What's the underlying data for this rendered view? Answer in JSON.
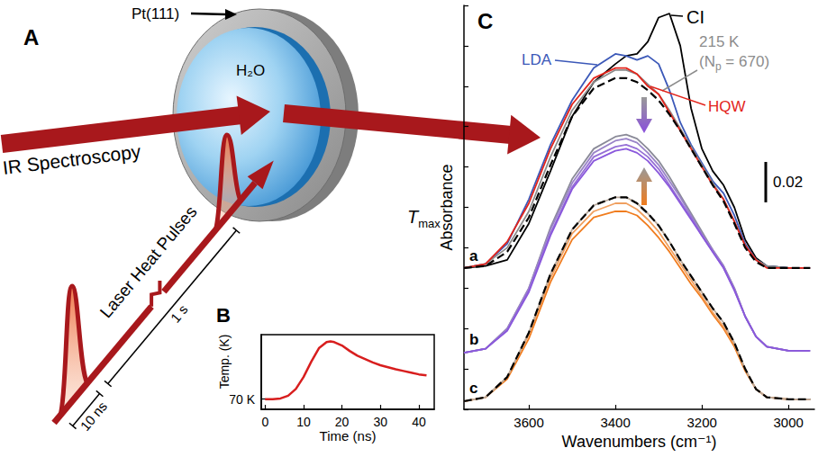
{
  "diagram": {
    "panel": "A",
    "surface": "Pt(111)",
    "film": "H₂O",
    "probe": "IR Spectroscopy",
    "pump": "Laser Heat Pulses",
    "pulse_width": "10 ns",
    "pulse_period": "1 s",
    "peak_temperature": {
      "symbol": "T",
      "subscript": "max"
    }
  },
  "chart_data": [
    {
      "panel": "B",
      "type": "line",
      "xlabel": "Time (ns)",
      "ylabel": "Temp. (K)",
      "x": [
        0,
        2,
        4,
        6,
        8,
        10,
        12,
        14,
        16,
        17,
        18,
        20,
        22,
        24,
        26,
        28,
        30,
        32,
        34,
        36,
        38,
        40,
        42
      ],
      "values": [
        70,
        70,
        72,
        80,
        100,
        135,
        180,
        220,
        238,
        240,
        238,
        228,
        212,
        198,
        188,
        178,
        170,
        164,
        158,
        153,
        148,
        143,
        140
      ],
      "color": "#d81e1e",
      "xlim": [
        -1,
        44
      ],
      "xticks": [
        0,
        10,
        20,
        30,
        40
      ],
      "ylim": [
        40,
        260
      ],
      "yticks": [
        {
          "value": 70,
          "label": "70 K"
        }
      ],
      "grid": false
    },
    {
      "panel": "C",
      "type": "line",
      "xlabel": "Wavenumbers (cm⁻¹)",
      "ylabel": "Absorbance",
      "annotations": [
        "a",
        "b",
        "c"
      ],
      "scale_bar": 0.02,
      "x": [
        3750,
        3700,
        3650,
        3600,
        3550,
        3500,
        3450,
        3400,
        3375,
        3350,
        3325,
        3300,
        3275,
        3250,
        3225,
        3200,
        3175,
        3150,
        3125,
        3100,
        3075,
        3050,
        3000,
        2950
      ],
      "xlim": [
        3750,
        2940
      ],
      "xticks": [
        3600,
        3400,
        3200,
        3000
      ],
      "ylim": [
        0,
        0.2
      ],
      "yticks": [
        0,
        0.02,
        0.04,
        0.06,
        0.08,
        0.1,
        0.12,
        0.14,
        0.16,
        0.18,
        0.2
      ],
      "tick_labels": "x",
      "grid": false,
      "series": [
        {
          "color": "#f07c1e",
          "values": [
            0.004,
            0.006,
            0.015,
            0.035,
            0.063,
            0.084,
            0.095,
            0.098,
            0.098,
            0.096,
            0.091,
            0.085,
            0.078,
            0.07,
            0.062,
            0.055,
            0.047,
            0.04,
            0.031,
            0.019,
            0.01,
            0.006,
            0.005,
            0.005
          ]
        },
        {
          "color": "#f0a060",
          "values": [
            0.004,
            0.006,
            0.016,
            0.037,
            0.065,
            0.087,
            0.098,
            0.102,
            0.102,
            0.099,
            0.094,
            0.088,
            0.08,
            0.072,
            0.064,
            0.056,
            0.048,
            0.041,
            0.032,
            0.02,
            0.01,
            0.006,
            0.005,
            0.005
          ]
        },
        {
          "color": "#b8a89a",
          "values": [
            0.004,
            0.006,
            0.016,
            0.038,
            0.067,
            0.089,
            0.101,
            0.105,
            0.105,
            0.102,
            0.097,
            0.091,
            0.083,
            0.074,
            0.066,
            0.058,
            0.05,
            0.043,
            0.033,
            0.02,
            0.01,
            0.006,
            0.005,
            0.005
          ]
        },
        {
          "color": "#000000",
          "line_style": "dashed",
          "values": [
            0.004,
            0.006,
            0.016,
            0.038,
            0.067,
            0.089,
            0.101,
            0.105,
            0.105,
            0.102,
            0.097,
            0.091,
            0.083,
            0.074,
            0.066,
            0.058,
            0.05,
            0.043,
            0.033,
            0.02,
            0.01,
            0.006,
            0.005,
            0.005
          ]
        },
        {
          "color": "#8a8a98",
          "values": [
            0.028,
            0.03,
            0.04,
            0.06,
            0.09,
            0.114,
            0.129,
            0.135,
            0.136,
            0.134,
            0.129,
            0.123,
            0.115,
            0.106,
            0.097,
            0.088,
            0.079,
            0.071,
            0.06,
            0.046,
            0.036,
            0.031,
            0.029,
            0.029
          ]
        },
        {
          "color": "#9a84c8",
          "values": [
            0.028,
            0.03,
            0.04,
            0.06,
            0.089,
            0.112,
            0.127,
            0.133,
            0.134,
            0.132,
            0.127,
            0.121,
            0.113,
            0.105,
            0.096,
            0.087,
            0.079,
            0.071,
            0.06,
            0.046,
            0.036,
            0.031,
            0.029,
            0.029
          ]
        },
        {
          "color": "#9670d6",
          "values": [
            0.028,
            0.03,
            0.039,
            0.059,
            0.087,
            0.11,
            0.125,
            0.13,
            0.131,
            0.129,
            0.125,
            0.119,
            0.111,
            0.103,
            0.095,
            0.086,
            0.078,
            0.07,
            0.059,
            0.046,
            0.036,
            0.031,
            0.029,
            0.029
          ]
        },
        {
          "color": "#8a58dc",
          "values": [
            0.028,
            0.03,
            0.039,
            0.058,
            0.086,
            0.109,
            0.123,
            0.128,
            0.129,
            0.127,
            0.123,
            0.117,
            0.11,
            0.102,
            0.094,
            0.086,
            0.078,
            0.07,
            0.059,
            0.046,
            0.036,
            0.031,
            0.029,
            0.029
          ]
        },
        {
          "name": "CI",
          "color": "#000000",
          "values": [
            0.07,
            0.071,
            0.074,
            0.092,
            0.118,
            0.145,
            0.162,
            0.171,
            0.175,
            0.176,
            0.182,
            0.194,
            0.196,
            0.18,
            0.149,
            0.129,
            0.118,
            0.111,
            0.1,
            0.084,
            0.075,
            0.071,
            0.07,
            0.07
          ]
        },
        {
          "name": "LDA",
          "color": "#3b58b8",
          "values": [
            0.07,
            0.072,
            0.082,
            0.104,
            0.131,
            0.153,
            0.169,
            0.176,
            0.175,
            0.173,
            0.175,
            0.171,
            0.158,
            0.142,
            0.131,
            0.122,
            0.113,
            0.107,
            0.096,
            0.082,
            0.074,
            0.071,
            0.07,
            0.07
          ]
        },
        {
          "name": "215 K (Np = 670)",
          "color": "#8c8c8c",
          "values": [
            0.07,
            0.072,
            0.08,
            0.098,
            0.125,
            0.148,
            0.162,
            0.168,
            0.168,
            0.166,
            0.161,
            0.156,
            0.148,
            0.139,
            0.13,
            0.121,
            0.112,
            0.104,
            0.093,
            0.081,
            0.074,
            0.071,
            0.07,
            0.07
          ]
        },
        {
          "name": "HQW",
          "color": "#e3241b",
          "values": [
            0.07,
            0.072,
            0.083,
            0.102,
            0.129,
            0.151,
            0.164,
            0.169,
            0.169,
            0.166,
            0.16,
            0.156,
            0.147,
            0.138,
            0.129,
            0.12,
            0.111,
            0.104,
            0.093,
            0.081,
            0.074,
            0.07,
            0.07,
            0.07
          ]
        },
        {
          "color": "#000000",
          "line_style": "dashed",
          "values": [
            0.07,
            0.071,
            0.078,
            0.095,
            0.121,
            0.145,
            0.159,
            0.164,
            0.164,
            0.162,
            0.158,
            0.153,
            0.146,
            0.138,
            0.129,
            0.12,
            0.111,
            0.103,
            0.092,
            0.08,
            0.073,
            0.07,
            0.07,
            0.07
          ]
        }
      ]
    }
  ]
}
